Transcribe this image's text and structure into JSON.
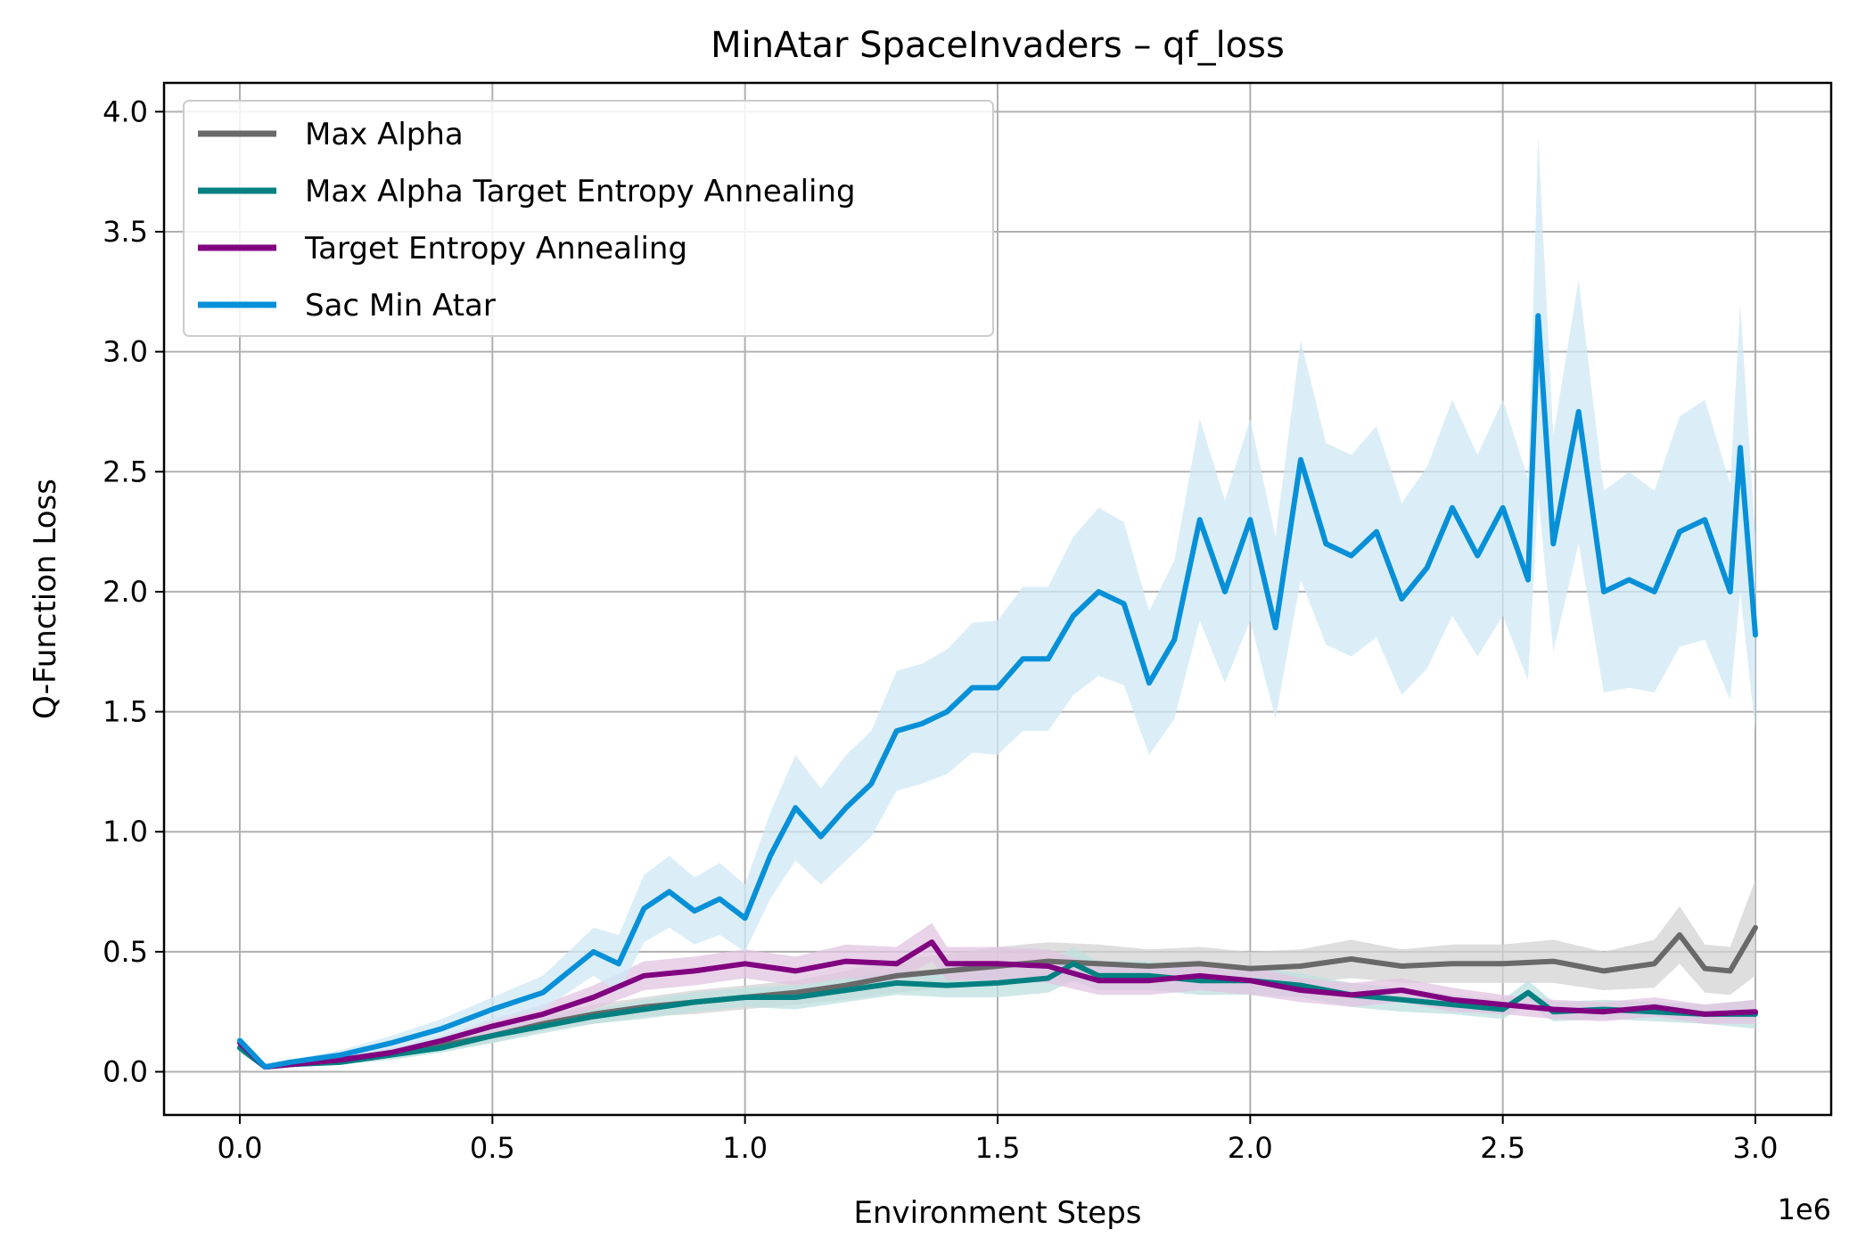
{
  "chart_data": {
    "type": "line",
    "title": "MinAtar SpaceInvaders – qf_loss",
    "xlabel": "Environment Steps",
    "ylabel": "Q-Function Loss",
    "x_offset_label": "1e6",
    "xlim": [
      -0.15,
      3.15
    ],
    "ylim": [
      -0.18,
      4.12
    ],
    "x_scale_multiplier": 1000000,
    "x_ticks": [
      0.0,
      0.5,
      1.0,
      1.5,
      2.0,
      2.5,
      3.0
    ],
    "x_tick_labels": [
      "0.0",
      "0.5",
      "1.0",
      "1.5",
      "2.0",
      "2.5",
      "3.0"
    ],
    "y_ticks": [
      0.0,
      0.5,
      1.0,
      1.5,
      2.0,
      2.5,
      3.0,
      3.5,
      4.0
    ],
    "y_tick_labels": [
      "0.0",
      "0.5",
      "1.0",
      "1.5",
      "2.0",
      "2.5",
      "3.0",
      "3.5",
      "4.0"
    ],
    "grid": true,
    "legend_position": "top-left",
    "series": [
      {
        "name": "Max Alpha",
        "color": "#696969",
        "band_color": "#d3d3d3",
        "x": [
          0.0,
          0.05,
          0.1,
          0.2,
          0.3,
          0.4,
          0.5,
          0.6,
          0.7,
          0.8,
          0.9,
          1.0,
          1.1,
          1.2,
          1.3,
          1.4,
          1.5,
          1.6,
          1.7,
          1.8,
          1.9,
          2.0,
          2.1,
          2.2,
          2.3,
          2.4,
          2.5,
          2.6,
          2.7,
          2.8,
          2.85,
          2.9,
          2.95,
          3.0
        ],
        "y": [
          0.1,
          0.02,
          0.03,
          0.05,
          0.08,
          0.11,
          0.15,
          0.2,
          0.24,
          0.27,
          0.29,
          0.31,
          0.33,
          0.36,
          0.4,
          0.42,
          0.44,
          0.46,
          0.45,
          0.44,
          0.45,
          0.43,
          0.44,
          0.47,
          0.44,
          0.45,
          0.45,
          0.46,
          0.42,
          0.45,
          0.57,
          0.43,
          0.42,
          0.6
        ],
        "spread": [
          0.02,
          0.01,
          0.01,
          0.01,
          0.02,
          0.02,
          0.03,
          0.03,
          0.04,
          0.04,
          0.05,
          0.05,
          0.05,
          0.06,
          0.07,
          0.07,
          0.08,
          0.08,
          0.08,
          0.07,
          0.07,
          0.07,
          0.07,
          0.08,
          0.07,
          0.08,
          0.08,
          0.09,
          0.08,
          0.1,
          0.12,
          0.1,
          0.1,
          0.2
        ]
      },
      {
        "name": "Max Alpha Target Entropy Annealing",
        "color": "#008080",
        "band_color": "#bde0df",
        "x": [
          0.0,
          0.05,
          0.1,
          0.2,
          0.3,
          0.4,
          0.5,
          0.6,
          0.7,
          0.8,
          0.9,
          1.0,
          1.1,
          1.2,
          1.3,
          1.4,
          1.5,
          1.6,
          1.65,
          1.7,
          1.8,
          1.9,
          2.0,
          2.1,
          2.2,
          2.3,
          2.4,
          2.5,
          2.55,
          2.6,
          2.7,
          2.8,
          2.9,
          3.0
        ],
        "y": [
          0.1,
          0.02,
          0.03,
          0.04,
          0.07,
          0.1,
          0.15,
          0.19,
          0.23,
          0.26,
          0.29,
          0.31,
          0.31,
          0.34,
          0.37,
          0.36,
          0.37,
          0.39,
          0.45,
          0.4,
          0.4,
          0.38,
          0.38,
          0.36,
          0.32,
          0.3,
          0.28,
          0.26,
          0.33,
          0.25,
          0.26,
          0.25,
          0.24,
          0.24
        ],
        "spread": [
          0.02,
          0.01,
          0.01,
          0.01,
          0.02,
          0.02,
          0.03,
          0.03,
          0.03,
          0.04,
          0.04,
          0.04,
          0.05,
          0.05,
          0.05,
          0.05,
          0.06,
          0.06,
          0.07,
          0.06,
          0.06,
          0.06,
          0.06,
          0.05,
          0.05,
          0.05,
          0.04,
          0.04,
          0.05,
          0.04,
          0.04,
          0.04,
          0.04,
          0.06
        ]
      },
      {
        "name": "Target Entropy Annealing",
        "color": "#800080",
        "band_color": "#e2c4e2",
        "x": [
          0.0,
          0.05,
          0.1,
          0.2,
          0.3,
          0.4,
          0.5,
          0.6,
          0.7,
          0.8,
          0.9,
          1.0,
          1.1,
          1.2,
          1.3,
          1.37,
          1.4,
          1.5,
          1.6,
          1.7,
          1.8,
          1.9,
          2.0,
          2.1,
          2.2,
          2.3,
          2.4,
          2.5,
          2.6,
          2.7,
          2.8,
          2.9,
          3.0
        ],
        "y": [
          0.12,
          0.02,
          0.03,
          0.05,
          0.08,
          0.13,
          0.19,
          0.24,
          0.31,
          0.4,
          0.42,
          0.45,
          0.42,
          0.46,
          0.45,
          0.54,
          0.45,
          0.45,
          0.44,
          0.38,
          0.38,
          0.4,
          0.38,
          0.34,
          0.32,
          0.34,
          0.3,
          0.28,
          0.26,
          0.25,
          0.27,
          0.24,
          0.25
        ],
        "spread": [
          0.02,
          0.01,
          0.01,
          0.01,
          0.02,
          0.02,
          0.03,
          0.04,
          0.05,
          0.06,
          0.06,
          0.06,
          0.06,
          0.07,
          0.07,
          0.08,
          0.07,
          0.07,
          0.07,
          0.06,
          0.06,
          0.06,
          0.06,
          0.05,
          0.05,
          0.05,
          0.05,
          0.04,
          0.04,
          0.04,
          0.04,
          0.04,
          0.05
        ]
      },
      {
        "name": "Sac Min Atar",
        "color": "#0790d8",
        "band_color": "#cfe8f6",
        "x": [
          0.0,
          0.05,
          0.1,
          0.2,
          0.3,
          0.4,
          0.5,
          0.6,
          0.7,
          0.75,
          0.8,
          0.85,
          0.9,
          0.95,
          1.0,
          1.05,
          1.1,
          1.15,
          1.2,
          1.25,
          1.3,
          1.35,
          1.4,
          1.45,
          1.5,
          1.55,
          1.6,
          1.65,
          1.7,
          1.75,
          1.8,
          1.85,
          1.9,
          1.95,
          2.0,
          2.05,
          2.1,
          2.15,
          2.2,
          2.25,
          2.3,
          2.35,
          2.4,
          2.45,
          2.5,
          2.55,
          2.57,
          2.6,
          2.65,
          2.7,
          2.75,
          2.8,
          2.85,
          2.9,
          2.95,
          2.97,
          3.0
        ],
        "y": [
          0.13,
          0.02,
          0.04,
          0.07,
          0.12,
          0.18,
          0.26,
          0.33,
          0.5,
          0.45,
          0.68,
          0.75,
          0.67,
          0.72,
          0.64,
          0.9,
          1.1,
          0.98,
          1.1,
          1.2,
          1.42,
          1.45,
          1.5,
          1.6,
          1.6,
          1.72,
          1.72,
          1.9,
          2.0,
          1.95,
          1.62,
          1.8,
          2.3,
          2.0,
          2.3,
          1.85,
          2.55,
          2.2,
          2.15,
          2.25,
          1.97,
          2.1,
          2.35,
          2.15,
          2.35,
          2.05,
          3.15,
          2.2,
          2.75,
          2.0,
          2.05,
          2.0,
          2.25,
          2.3,
          2.0,
          2.6,
          1.82
        ],
        "spread": [
          0.02,
          0.01,
          0.01,
          0.02,
          0.03,
          0.04,
          0.05,
          0.07,
          0.1,
          0.12,
          0.14,
          0.15,
          0.14,
          0.15,
          0.14,
          0.18,
          0.22,
          0.2,
          0.22,
          0.22,
          0.25,
          0.25,
          0.26,
          0.27,
          0.28,
          0.3,
          0.3,
          0.33,
          0.35,
          0.34,
          0.3,
          0.33,
          0.42,
          0.38,
          0.42,
          0.38,
          0.5,
          0.42,
          0.42,
          0.44,
          0.4,
          0.42,
          0.45,
          0.42,
          0.45,
          0.42,
          0.75,
          0.45,
          0.55,
          0.42,
          0.45,
          0.42,
          0.48,
          0.5,
          0.45,
          0.6,
          0.4
        ]
      }
    ]
  }
}
